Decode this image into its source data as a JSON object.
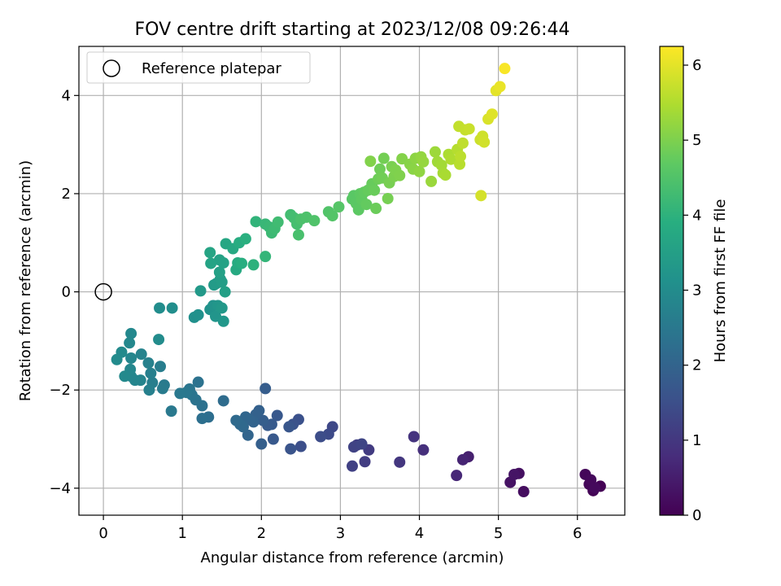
{
  "chart_data": {
    "type": "scatter",
    "title": "FOV centre drift starting at 2023/12/08 09:26:44",
    "xlabel": "Angular distance from reference (arcmin)",
    "ylabel": "Rotation from reference (arcmin)",
    "colorbar_label": "Hours from first FF file",
    "colormap": "viridis",
    "xlim": [
      -0.31,
      6.6
    ],
    "ylim": [
      -4.55,
      5.0
    ],
    "clim": [
      0,
      6.25
    ],
    "xticks": [
      "0",
      "1",
      "2",
      "3",
      "4",
      "5",
      "6"
    ],
    "yticks": [
      "−4",
      "−2",
      "0",
      "2",
      "4"
    ],
    "cticks": [
      "0",
      "1",
      "2",
      "3",
      "4",
      "5",
      "6"
    ],
    "grid": true,
    "legend": {
      "label": "Reference platepar",
      "placement": "upper-left"
    },
    "reference_point": {
      "x": 0,
      "y": 0
    },
    "points": [
      [
        6.29,
        -3.96,
        0.02
      ],
      [
        6.2,
        -4.05,
        0.05
      ],
      [
        6.15,
        -3.92,
        0.08
      ],
      [
        6.1,
        -3.72,
        0.11
      ],
      [
        6.17,
        -3.83,
        0.14
      ],
      [
        6.22,
        -3.99,
        0.16
      ],
      [
        5.32,
        -4.07,
        0.22
      ],
      [
        5.26,
        -3.7,
        0.26
      ],
      [
        5.15,
        -3.88,
        0.3
      ],
      [
        5.2,
        -3.72,
        0.34
      ],
      [
        4.62,
        -3.36,
        0.55
      ],
      [
        4.55,
        -3.42,
        0.62
      ],
      [
        4.47,
        -3.74,
        0.7
      ],
      [
        4.05,
        -3.22,
        0.85
      ],
      [
        3.93,
        -2.95,
        0.92
      ],
      [
        3.75,
        -3.47,
        1.0
      ],
      [
        3.36,
        -3.22,
        1.08
      ],
      [
        3.31,
        -3.46,
        1.12
      ],
      [
        3.21,
        -3.12,
        1.16
      ],
      [
        3.15,
        -3.55,
        1.2
      ],
      [
        3.17,
        -3.16,
        1.24
      ],
      [
        3.27,
        -3.1,
        1.28
      ],
      [
        2.9,
        -2.75,
        1.35
      ],
      [
        2.85,
        -2.9,
        1.4
      ],
      [
        2.75,
        -2.95,
        1.45
      ],
      [
        2.5,
        -3.15,
        1.5
      ],
      [
        2.47,
        -2.6,
        1.54
      ],
      [
        2.4,
        -2.7,
        1.58
      ],
      [
        2.37,
        -3.2,
        1.62
      ],
      [
        2.35,
        -2.75,
        1.66
      ],
      [
        2.2,
        -2.52,
        1.7
      ],
      [
        2.15,
        -3.0,
        1.73
      ],
      [
        2.13,
        -2.7,
        1.76
      ],
      [
        2.08,
        -2.72,
        1.79
      ],
      [
        2.05,
        -1.97,
        1.82
      ],
      [
        2.02,
        -2.62,
        1.85
      ],
      [
        2.0,
        -3.1,
        1.88
      ],
      [
        1.97,
        -2.42,
        1.91
      ],
      [
        1.93,
        -2.5,
        1.94
      ],
      [
        1.9,
        -2.65,
        1.97
      ],
      [
        1.85,
        -2.6,
        2.0
      ],
      [
        1.83,
        -2.92,
        2.03
      ],
      [
        1.8,
        -2.55,
        2.06
      ],
      [
        1.77,
        -2.75,
        2.09
      ],
      [
        1.73,
        -2.7,
        2.12
      ],
      [
        1.68,
        -2.62,
        2.15
      ],
      [
        1.52,
        -2.22,
        2.2
      ],
      [
        1.33,
        -2.55,
        2.24
      ],
      [
        1.25,
        -2.58,
        2.28
      ],
      [
        1.25,
        -2.32,
        2.31
      ],
      [
        1.2,
        -1.84,
        2.34
      ],
      [
        1.17,
        -2.2,
        2.37
      ],
      [
        1.12,
        -2.1,
        2.4
      ],
      [
        1.09,
        -1.98,
        2.43
      ],
      [
        1.05,
        -2.05,
        2.46
      ],
      [
        0.97,
        -2.07,
        2.49
      ],
      [
        0.86,
        -2.43,
        2.52
      ],
      [
        0.77,
        -1.9,
        2.55
      ],
      [
        0.75,
        -1.97,
        2.58
      ],
      [
        0.72,
        -1.52,
        2.61
      ],
      [
        0.62,
        -1.85,
        2.64
      ],
      [
        0.6,
        -1.66,
        2.67
      ],
      [
        0.58,
        -2.0,
        2.7
      ],
      [
        0.57,
        -1.45,
        2.73
      ],
      [
        0.48,
        -1.27,
        2.76
      ],
      [
        0.47,
        -1.8,
        2.79
      ],
      [
        0.4,
        -1.8,
        2.81
      ],
      [
        0.35,
        -1.72,
        2.83
      ],
      [
        0.35,
        -1.35,
        2.85
      ],
      [
        0.34,
        -1.58,
        2.87
      ],
      [
        0.33,
        -1.04,
        2.89
      ],
      [
        0.35,
        -0.85,
        2.91
      ],
      [
        0.27,
        -1.72,
        2.93
      ],
      [
        0.23,
        -1.23,
        2.95
      ],
      [
        0.17,
        -1.38,
        2.97
      ],
      [
        0.7,
        -0.97,
        3.0
      ],
      [
        0.71,
        -0.33,
        3.03
      ],
      [
        0.87,
        -0.33,
        3.06
      ],
      [
        1.15,
        -0.52,
        3.1
      ],
      [
        1.2,
        -0.47,
        3.13
      ],
      [
        1.35,
        -0.36,
        3.16
      ],
      [
        1.39,
        -0.28,
        3.19
      ],
      [
        1.42,
        -0.5,
        3.22
      ],
      [
        1.45,
        -0.28,
        3.25
      ],
      [
        1.52,
        -0.6,
        3.28
      ],
      [
        1.5,
        -0.33,
        3.31
      ],
      [
        1.23,
        0.02,
        3.34
      ],
      [
        1.4,
        0.14,
        3.37
      ],
      [
        1.43,
        0.17,
        3.4
      ],
      [
        1.48,
        0.26,
        3.43
      ],
      [
        1.5,
        0.2,
        3.46
      ],
      [
        1.54,
        0.0,
        3.49
      ],
      [
        1.47,
        0.4,
        3.52
      ],
      [
        1.47,
        0.65,
        3.55
      ],
      [
        1.52,
        0.59,
        3.58
      ],
      [
        1.36,
        0.58,
        3.61
      ],
      [
        1.35,
        0.8,
        3.64
      ],
      [
        1.55,
        0.98,
        3.7
      ],
      [
        1.64,
        0.88,
        3.74
      ],
      [
        1.68,
        0.45,
        3.78
      ],
      [
        1.7,
        0.59,
        3.82
      ],
      [
        1.72,
        1.0,
        3.86
      ],
      [
        1.75,
        0.58,
        3.9
      ],
      [
        1.8,
        1.08,
        3.94
      ],
      [
        1.9,
        0.55,
        4.0
      ],
      [
        1.93,
        1.43,
        4.05
      ],
      [
        2.05,
        0.72,
        4.1
      ],
      [
        2.05,
        1.38,
        4.15
      ],
      [
        2.1,
        1.32,
        4.18
      ],
      [
        2.13,
        1.2,
        4.21
      ],
      [
        2.17,
        1.29,
        4.24
      ],
      [
        2.21,
        1.42,
        4.27
      ],
      [
        2.37,
        1.57,
        4.3
      ],
      [
        2.41,
        1.51,
        4.33
      ],
      [
        2.45,
        1.38,
        4.36
      ],
      [
        2.47,
        1.16,
        4.39
      ],
      [
        2.5,
        1.48,
        4.42
      ],
      [
        2.57,
        1.52,
        4.45
      ],
      [
        2.67,
        1.45,
        4.48
      ],
      [
        2.85,
        1.63,
        4.51
      ],
      [
        2.9,
        1.55,
        4.54
      ],
      [
        2.98,
        1.73,
        4.57
      ],
      [
        3.15,
        1.89,
        4.6
      ],
      [
        3.17,
        1.96,
        4.62
      ],
      [
        3.2,
        1.8,
        4.64
      ],
      [
        3.23,
        1.67,
        4.66
      ],
      [
        3.25,
        2.0,
        4.68
      ],
      [
        3.27,
        1.88,
        4.7
      ],
      [
        3.3,
        2.03,
        4.72
      ],
      [
        3.33,
        1.78,
        4.74
      ],
      [
        3.35,
        2.07,
        4.76
      ],
      [
        3.4,
        2.2,
        4.78
      ],
      [
        3.43,
        2.07,
        4.8
      ],
      [
        3.45,
        1.7,
        4.82
      ],
      [
        3.48,
        2.3,
        4.84
      ],
      [
        3.5,
        2.5,
        4.86
      ],
      [
        3.53,
        2.32,
        4.88
      ],
      [
        3.55,
        2.72,
        4.9
      ],
      [
        3.6,
        1.9,
        4.92
      ],
      [
        3.62,
        2.22,
        4.94
      ],
      [
        3.65,
        2.55,
        4.96
      ],
      [
        3.68,
        2.35,
        4.98
      ],
      [
        3.7,
        2.48,
        5.0
      ],
      [
        3.75,
        2.37,
        5.02
      ],
      [
        3.38,
        2.66,
        5.04
      ],
      [
        3.78,
        2.71,
        5.06
      ],
      [
        3.88,
        2.6,
        5.09
      ],
      [
        3.92,
        2.5,
        5.12
      ],
      [
        3.95,
        2.72,
        5.15
      ],
      [
        4.0,
        2.45,
        5.18
      ],
      [
        4.02,
        2.75,
        5.21
      ],
      [
        4.05,
        2.65,
        5.24
      ],
      [
        4.15,
        2.25,
        5.28
      ],
      [
        4.2,
        2.85,
        5.31
      ],
      [
        4.23,
        2.65,
        5.34
      ],
      [
        4.28,
        2.58,
        5.37
      ],
      [
        4.3,
        2.42,
        5.4
      ],
      [
        4.33,
        2.38,
        5.43
      ],
      [
        4.37,
        2.8,
        5.46
      ],
      [
        4.4,
        2.7,
        5.49
      ],
      [
        4.48,
        2.9,
        5.55
      ],
      [
        4.51,
        2.6,
        5.58
      ],
      [
        4.52,
        2.76,
        5.61
      ],
      [
        4.55,
        3.03,
        5.64
      ],
      [
        4.5,
        3.37,
        5.67
      ],
      [
        4.58,
        3.3,
        5.7
      ],
      [
        4.63,
        3.32,
        5.73
      ],
      [
        4.77,
        3.1,
        5.76
      ],
      [
        4.8,
        3.17,
        5.79
      ],
      [
        4.82,
        3.05,
        5.82
      ],
      [
        4.78,
        1.96,
        5.85
      ],
      [
        4.87,
        3.52,
        5.9
      ],
      [
        4.92,
        3.62,
        5.95
      ],
      [
        4.97,
        4.1,
        6.0
      ],
      [
        5.02,
        4.18,
        6.05
      ],
      [
        5.08,
        4.55,
        6.2
      ]
    ]
  }
}
